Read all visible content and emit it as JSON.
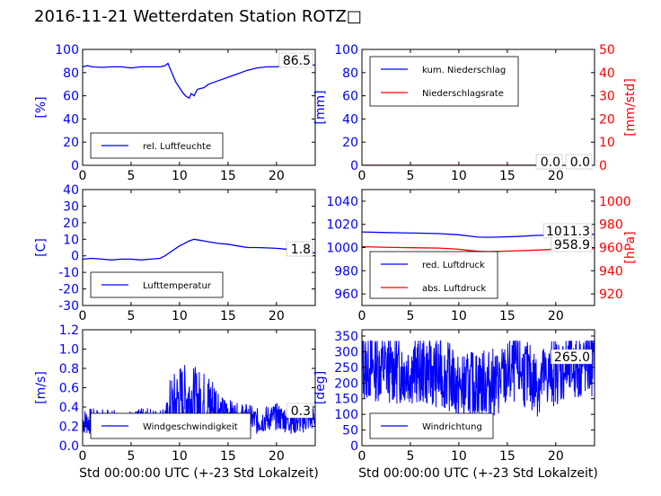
{
  "page": {
    "title": "2016-11-21 Wetterdaten Station ROTZ□"
  },
  "colors": {
    "primary": "#0000ff",
    "secondary": "#ff0000",
    "light": "#8080ff"
  },
  "chart_data": [
    {
      "id": "humidity",
      "type": "line",
      "grid": false,
      "ylabel": "[%]",
      "ylim": [
        0,
        100
      ],
      "yticks": [
        0,
        20,
        40,
        60,
        80,
        100
      ],
      "xlabel": "",
      "xlim": [
        0,
        24
      ],
      "xticks": [
        0,
        5,
        10,
        15,
        20
      ],
      "value_label": "86.5",
      "legend_placement": "lower-left",
      "series": [
        {
          "name": "rel. Luftfeuchte",
          "color": "#0000ff",
          "x": [
            0,
            0.5,
            1,
            2,
            3,
            4,
            5,
            6,
            7,
            8,
            8.5,
            8.8,
            9,
            9.3,
            9.6,
            10,
            10.3,
            10.6,
            11,
            11.2,
            11.5,
            11.8,
            12,
            12.5,
            13,
            14,
            15,
            16,
            17,
            18,
            19,
            20,
            21,
            22,
            23,
            24
          ],
          "y": [
            85,
            86,
            85,
            84.5,
            85,
            85,
            84,
            85,
            85,
            85,
            86,
            88,
            84,
            78,
            72,
            67,
            63,
            60,
            58,
            62,
            60,
            65,
            66,
            67,
            70,
            73,
            76,
            79,
            82,
            84,
            85,
            85,
            86,
            86,
            86.5,
            86.5
          ]
        }
      ]
    },
    {
      "id": "precip",
      "type": "line",
      "grid": false,
      "ylabel": "[mm]",
      "ylim": [
        0,
        100
      ],
      "yticks": [
        0,
        20,
        40,
        60,
        80,
        100
      ],
      "y2label": "[mm/std]",
      "y2lim": [
        0,
        50
      ],
      "y2ticks": [
        0,
        10,
        20,
        30,
        40,
        50
      ],
      "xlabel": "",
      "xlim": [
        0,
        24
      ],
      "xticks": [
        0,
        5,
        10,
        15,
        20
      ],
      "value_label": "0.0",
      "value_label2": "0.0",
      "legend_placement": "upper-left",
      "series": [
        {
          "name": "kum. Niederschlag",
          "color": "#0000ff",
          "axis": "left",
          "x": [
            0,
            24
          ],
          "y": [
            0,
            0
          ]
        },
        {
          "name": "Niederschlagsrate",
          "color": "#ff0000",
          "axis": "right",
          "x": [
            0,
            24
          ],
          "y": [
            0,
            0
          ]
        }
      ]
    },
    {
      "id": "temperature",
      "type": "line",
      "grid": false,
      "ylabel": "[C]",
      "ylim": [
        -30,
        40
      ],
      "yticks": [
        -30,
        -20,
        -10,
        0,
        10,
        20,
        30,
        40
      ],
      "xlabel": "",
      "xlim": [
        0,
        24
      ],
      "xticks": [
        0,
        5,
        10,
        15,
        20
      ],
      "value_label": "1.8",
      "legend_placement": "lower-left",
      "series": [
        {
          "name": "Lufttemperatur",
          "color": "#0000ff",
          "x": [
            0,
            1,
            2,
            3,
            4,
            5,
            6,
            7,
            8,
            8.5,
            9,
            9.5,
            10,
            10.5,
            11,
            11.5,
            12,
            12.5,
            13,
            14,
            15,
            16,
            17,
            18,
            19,
            20,
            21,
            22,
            23,
            24
          ],
          "y": [
            -2,
            -1.5,
            -2,
            -2.5,
            -2,
            -2,
            -2.5,
            -2,
            -1.5,
            0,
            2,
            4,
            6,
            7.5,
            9,
            10,
            9.5,
            9,
            8.5,
            7.5,
            7,
            6,
            5,
            5,
            4.8,
            4.5,
            4,
            3,
            2.2,
            1.8
          ]
        }
      ]
    },
    {
      "id": "pressure",
      "type": "line",
      "grid": false,
      "ylabel": "",
      "ylim": [
        950,
        1050
      ],
      "yticks": [
        960,
        980,
        1000,
        1020,
        1040
      ],
      "y2label": "[hPa]",
      "y2lim": [
        910,
        1010
      ],
      "y2ticks": [
        920,
        940,
        960,
        980,
        1000
      ],
      "xlabel": "",
      "xlim": [
        0,
        24
      ],
      "xticks": [
        0,
        5,
        10,
        15,
        20
      ],
      "value_label": "1011.3",
      "value_label2": "958.9",
      "legend_placement": "lower-left",
      "series": [
        {
          "name": "red. Luftdruck",
          "color": "#0000ff",
          "axis": "left",
          "x": [
            0,
            2,
            4,
            6,
            8,
            10,
            11,
            12,
            13,
            14,
            16,
            18,
            20,
            22,
            24
          ],
          "y": [
            1013.5,
            1013,
            1012.7,
            1012.4,
            1012,
            1011,
            1010,
            1009,
            1008.8,
            1009,
            1009.5,
            1010.5,
            1011,
            1011.3,
            1011.3
          ]
        },
        {
          "name": "abs. Luftdruck",
          "color": "#ff0000",
          "axis": "right",
          "x": [
            0,
            2,
            4,
            6,
            8,
            10,
            11,
            12,
            13,
            14,
            16,
            18,
            20,
            22,
            24
          ],
          "y": [
            960.8,
            960.3,
            960,
            959.8,
            959.5,
            958.5,
            957.5,
            956.8,
            956.5,
            956.7,
            957.2,
            957.8,
            958.5,
            958.9,
            958.9
          ]
        }
      ]
    },
    {
      "id": "wind-speed",
      "type": "line",
      "grid": false,
      "ylabel": "[m/s]",
      "ylim": [
        0,
        1.2
      ],
      "yticks": [
        "0.0",
        "0.2",
        "0.4",
        "0.6",
        "0.8",
        "1.0",
        "1.2"
      ],
      "xlabel": "Std 00:00:00 UTC (+-23 Std Lokalzeit)",
      "xlim": [
        0,
        24
      ],
      "xticks": [
        0,
        5,
        10,
        15,
        20
      ],
      "value_label": "0.3",
      "legend_placement": "lower-left",
      "series": [
        {
          "name": "Windgeschwindigkeit",
          "color": "#0000ff",
          "noise": true,
          "seed": 7,
          "x": [
            0,
            2,
            4,
            6,
            8,
            9,
            10,
            11,
            12,
            13,
            14,
            15,
            16,
            17,
            18,
            19,
            20,
            22,
            24
          ],
          "y": [
            0.25,
            0.25,
            0.22,
            0.25,
            0.25,
            0.35,
            0.5,
            0.5,
            0.45,
            0.42,
            0.38,
            0.35,
            0.3,
            0.3,
            0.25,
            0.28,
            0.3,
            0.25,
            0.3
          ]
        }
      ]
    },
    {
      "id": "wind-dir",
      "type": "line",
      "grid": false,
      "ylabel": "[deg]",
      "ylim": [
        0,
        370
      ],
      "yticks": [
        0,
        50,
        100,
        150,
        200,
        250,
        300,
        350
      ],
      "xlabel": "Std 00:00:00 UTC (+-23 Std Lokalzeit)",
      "xlim": [
        0,
        24
      ],
      "xticks": [
        0,
        5,
        10,
        15,
        20
      ],
      "value_label": "265.0",
      "legend_placement": "lower-left",
      "series": [
        {
          "name": "Windrichtung",
          "color": "#0000ff",
          "noise": true,
          "seed": 13,
          "x": [
            0,
            2,
            4,
            6,
            8,
            9,
            10,
            12,
            14,
            16,
            18,
            20,
            22,
            24
          ],
          "y": [
            250,
            250,
            240,
            240,
            230,
            220,
            180,
            200,
            200,
            250,
            200,
            240,
            250,
            265
          ]
        }
      ]
    }
  ]
}
